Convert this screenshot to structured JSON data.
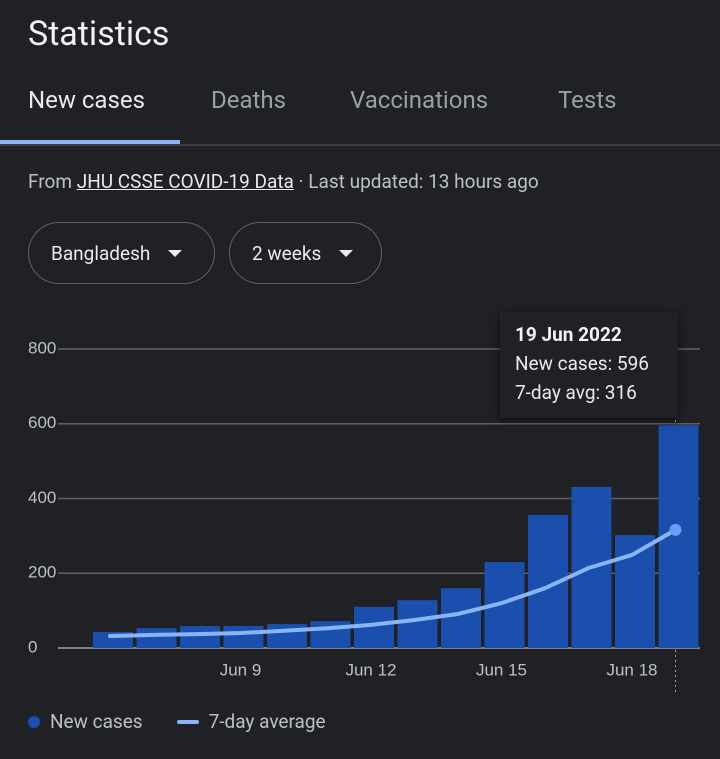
{
  "header": {
    "title": "Statistics"
  },
  "tabs": [
    "New cases",
    "Deaths",
    "Vaccinations",
    "Tests"
  ],
  "source": {
    "prefix": "From",
    "link": "JHU CSSE COVID-19 Data",
    "suffix": "· Last updated: 13 hours ago"
  },
  "filters": [
    "Bangladesh",
    "2 weeks"
  ],
  "tooltip": {
    "date": "19 Jun 2022",
    "lines": [
      "New cases: 596",
      "7-day avg: 316"
    ]
  },
  "chart_data": {
    "type": "bar",
    "categories": [
      null,
      null,
      null,
      "Jun 9",
      null,
      null,
      "Jun 12",
      null,
      null,
      "Jun 15",
      null,
      null,
      "Jun 18",
      null
    ],
    "series": [
      {
        "name": "New cases",
        "type": "bar",
        "color": "#1a4fad",
        "values": [
          43,
          53,
          59,
          59,
          64,
          72,
          110,
          128,
          160,
          230,
          356,
          431,
          302,
          596
        ]
      },
      {
        "name": "7-day average",
        "type": "line",
        "color": "#8ab4f8",
        "values": [
          32,
          35,
          37,
          40,
          46,
          53,
          62,
          75,
          91,
          120,
          160,
          214,
          249,
          316
        ]
      }
    ],
    "ylim": [
      0,
      800
    ],
    "yticks": [
      0,
      200,
      400,
      600,
      800
    ],
    "grid": true
  }
}
